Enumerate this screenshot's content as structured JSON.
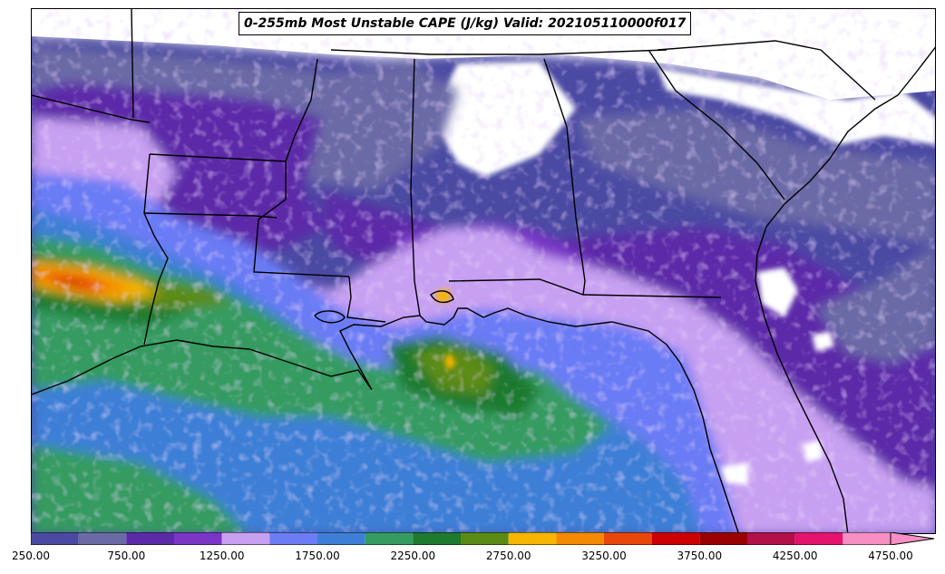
{
  "title": "0-255mb Most Unstable CAPE (J/kg) Valid: 202105110000f017",
  "colorbar": {
    "levels": [
      250,
      500,
      750,
      1000,
      1250,
      1500,
      1750,
      2000,
      2250,
      2500,
      2750,
      3000,
      3250,
      3500,
      3750,
      4000,
      4250,
      4500,
      4750
    ],
    "colors": [
      "#4b4aa3",
      "#6a6aa6",
      "#5b2aa8",
      "#7a36c7",
      "#c8a0f2",
      "#6b7cf5",
      "#3d7fd6",
      "#369b60",
      "#1d7a2e",
      "#5b8b14",
      "#f7b500",
      "#f58a00",
      "#e9470a",
      "#cc0000",
      "#990000",
      "#b3104a",
      "#e6136e",
      "#f78fc4"
    ],
    "extend": "max",
    "tick_labels": [
      "250.00",
      "750.00",
      "1250.00",
      "1750.00",
      "2250.00",
      "2750.00",
      "3250.00",
      "3750.00",
      "4250.00",
      "4750.00"
    ],
    "tick_values": [
      250,
      750,
      1250,
      1750,
      2250,
      2750,
      3250,
      3750,
      4250,
      4750
    ]
  }
}
